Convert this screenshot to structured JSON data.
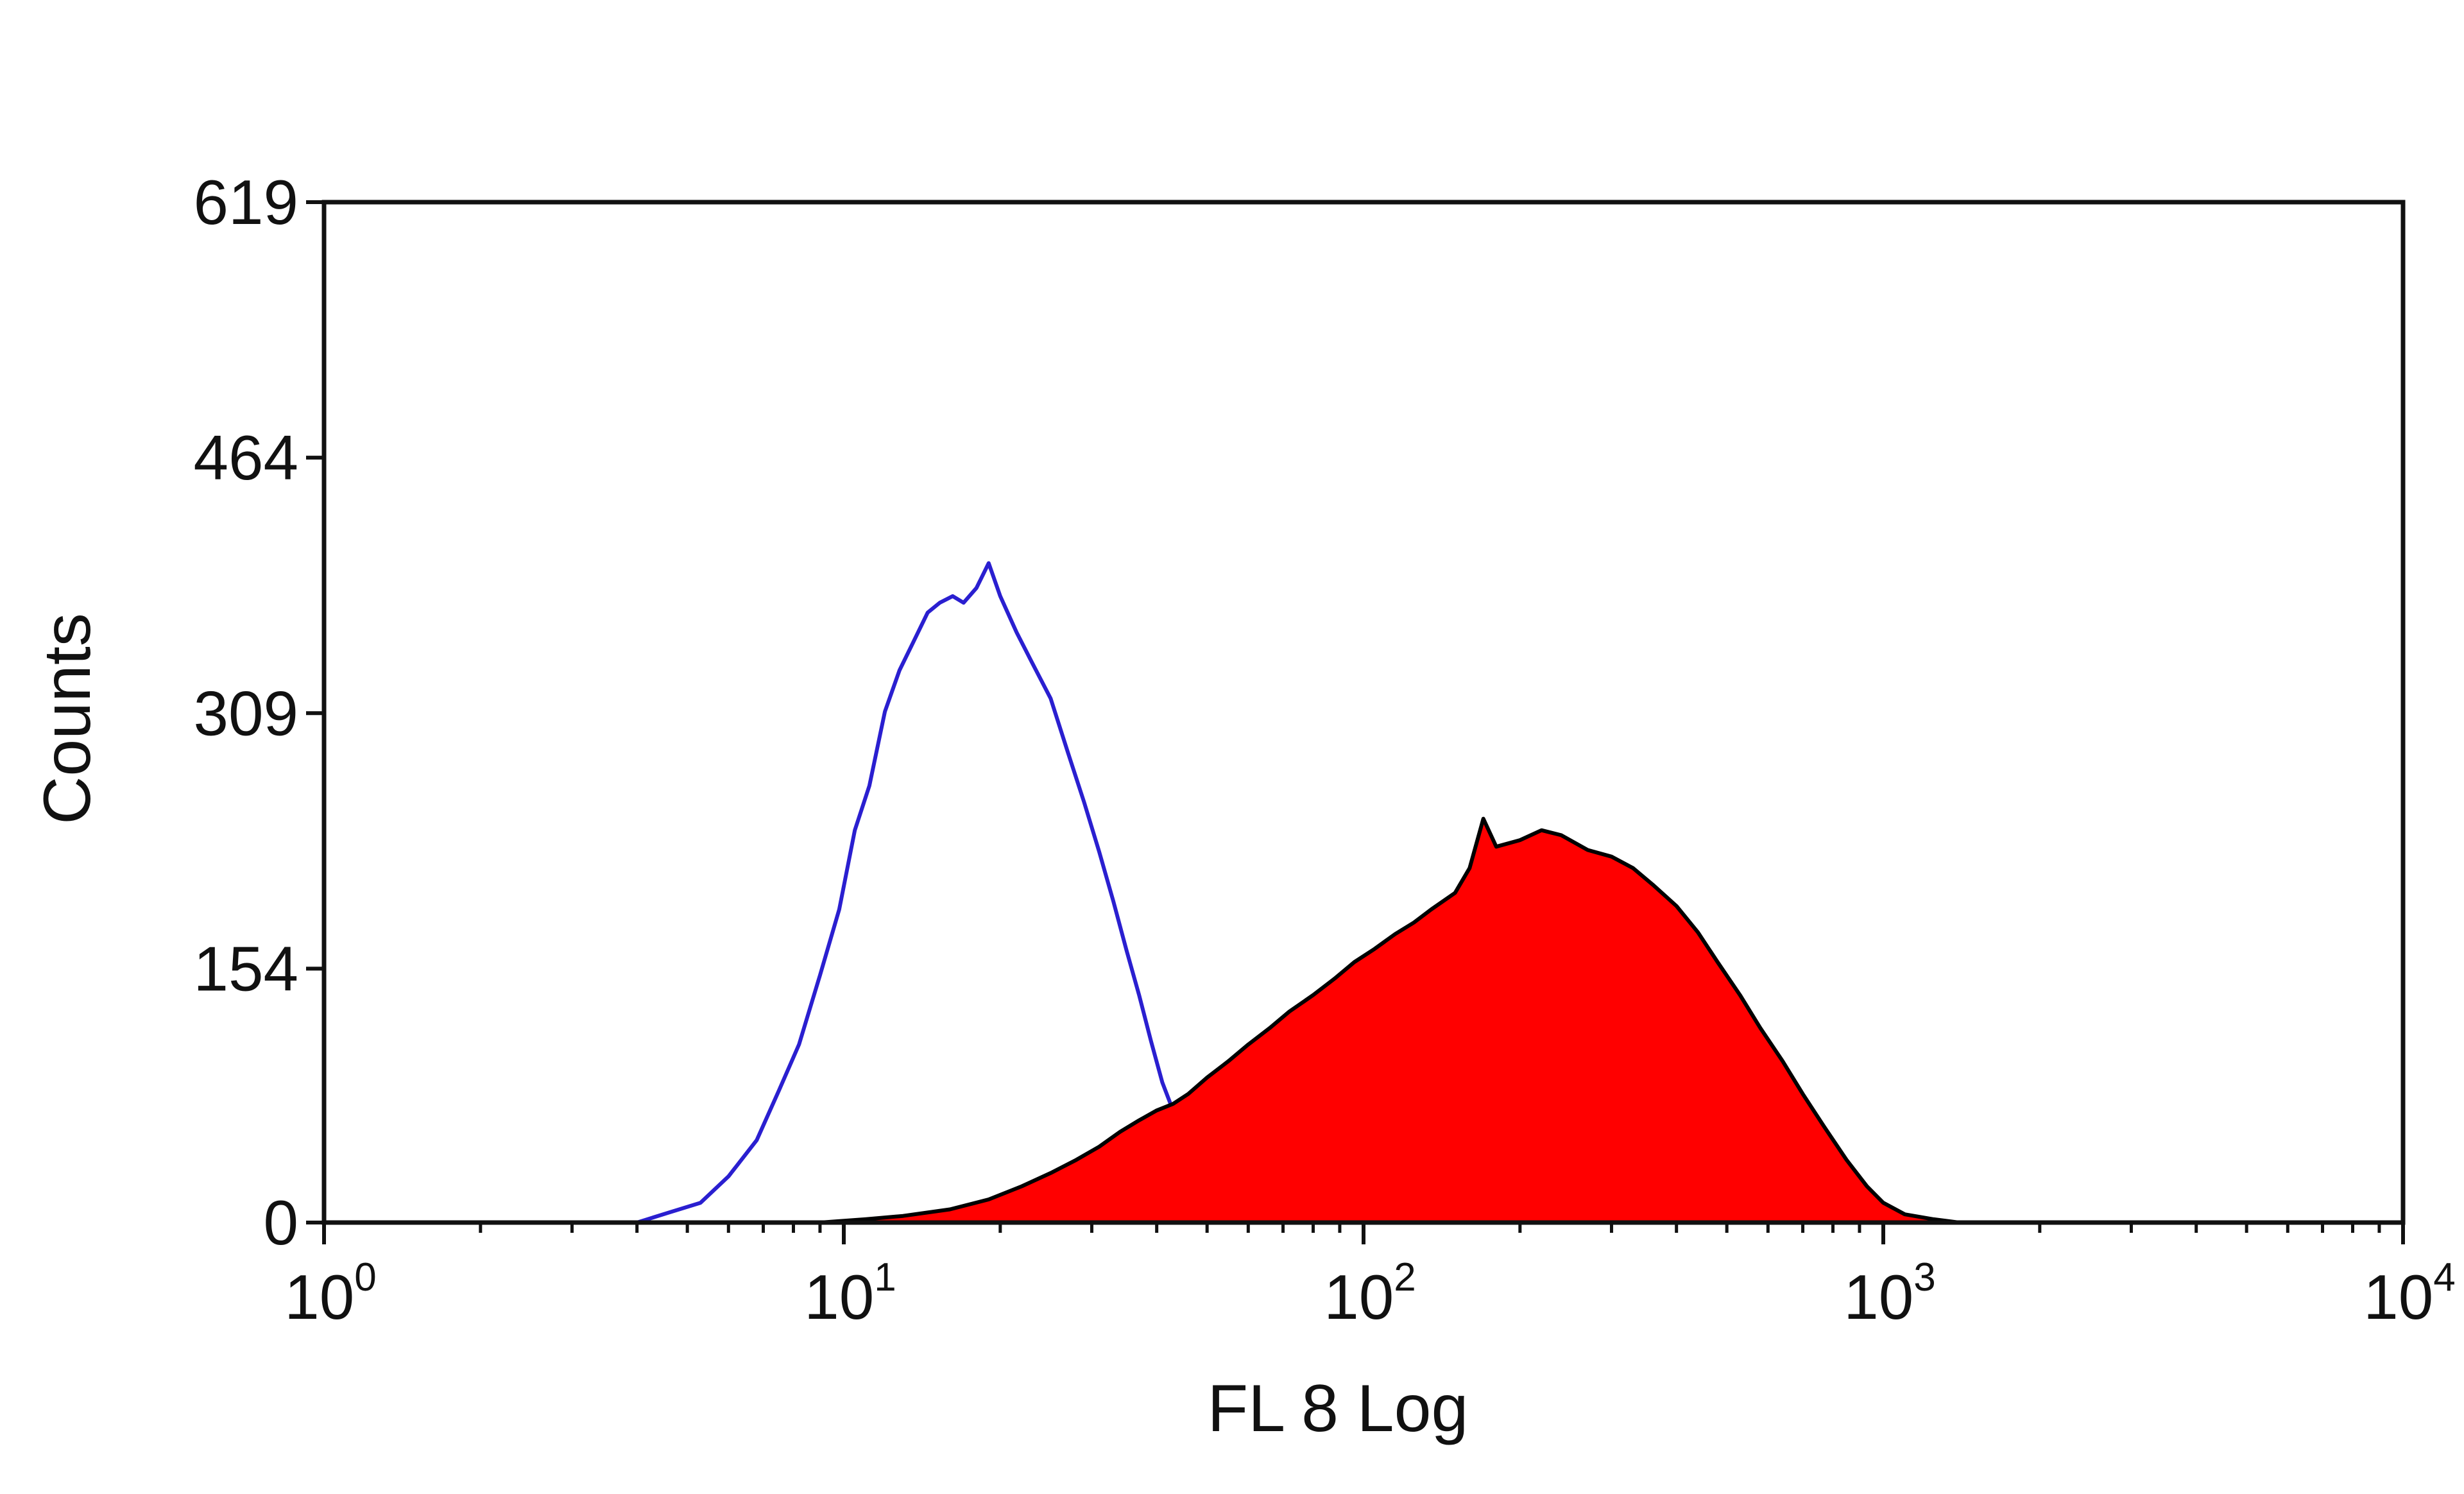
{
  "chart_data": {
    "type": "area",
    "xlabel": "FL 8 Log",
    "ylabel": "Counts",
    "xscale": "log",
    "xlim": [
      1,
      10000
    ],
    "ylim": [
      0,
      619
    ],
    "grid": false,
    "legend": "none",
    "x_ticks": [
      {
        "base": "10",
        "exp": "0",
        "value": 1
      },
      {
        "base": "10",
        "exp": "1",
        "value": 10
      },
      {
        "base": "10",
        "exp": "2",
        "value": 100
      },
      {
        "base": "10",
        "exp": "3",
        "value": 1000
      },
      {
        "base": "10",
        "exp": "4",
        "value": 10000
      }
    ],
    "y_ticks": [
      "0",
      "154",
      "309",
      "464",
      "619"
    ],
    "series": [
      {
        "style": "outline",
        "color": "#2a1fd0",
        "points": [
          [
            4.0,
            0
          ],
          [
            4.6,
            6
          ],
          [
            5.3,
            12
          ],
          [
            6.0,
            28
          ],
          [
            6.8,
            50
          ],
          [
            7.5,
            80
          ],
          [
            8.2,
            108
          ],
          [
            9.0,
            150
          ],
          [
            9.8,
            190
          ],
          [
            10.5,
            238
          ],
          [
            11.2,
            265
          ],
          [
            12.0,
            310
          ],
          [
            12.8,
            335
          ],
          [
            13.6,
            352
          ],
          [
            14.5,
            370
          ],
          [
            15.3,
            376
          ],
          [
            16.2,
            380
          ],
          [
            17.0,
            376
          ],
          [
            18.0,
            385
          ],
          [
            19.0,
            400
          ],
          [
            20.0,
            380
          ],
          [
            21.5,
            358
          ],
          [
            23.0,
            340
          ],
          [
            25.0,
            318
          ],
          [
            27.0,
            285
          ],
          [
            29.0,
            255
          ],
          [
            31.0,
            225
          ],
          [
            33.0,
            195
          ],
          [
            35.0,
            165
          ],
          [
            37.0,
            138
          ],
          [
            39.0,
            110
          ],
          [
            41.0,
            85
          ],
          [
            43.0,
            68
          ],
          [
            46.0,
            55
          ],
          [
            50.0,
            45
          ],
          [
            55.0,
            38
          ],
          [
            60.0,
            32
          ],
          [
            66.0,
            34
          ],
          [
            72.0,
            30
          ],
          [
            80.0,
            28
          ],
          [
            90.0,
            22
          ],
          [
            100.0,
            16
          ],
          [
            115.0,
            12
          ],
          [
            130.0,
            8
          ],
          [
            150.0,
            6
          ],
          [
            170.0,
            4
          ],
          [
            200.0,
            2
          ],
          [
            250.0,
            0
          ]
        ]
      },
      {
        "style": "filled",
        "color": "#ff0000",
        "outline": "#000000",
        "points": [
          [
            9.0,
            0
          ],
          [
            11.0,
            2
          ],
          [
            13.0,
            4
          ],
          [
            16.0,
            8
          ],
          [
            19.0,
            14
          ],
          [
            22.0,
            22
          ],
          [
            25.0,
            30
          ],
          [
            28.0,
            38
          ],
          [
            31.0,
            46
          ],
          [
            34.0,
            55
          ],
          [
            37.0,
            62
          ],
          [
            40.0,
            68
          ],
          [
            43.0,
            72
          ],
          [
            46.0,
            78
          ],
          [
            50.0,
            88
          ],
          [
            55.0,
            98
          ],
          [
            60.0,
            108
          ],
          [
            66.0,
            118
          ],
          [
            72.0,
            128
          ],
          [
            80.0,
            138
          ],
          [
            88.0,
            148
          ],
          [
            96.0,
            158
          ],
          [
            105.0,
            166
          ],
          [
            115.0,
            175
          ],
          [
            125.0,
            182
          ],
          [
            135.0,
            190
          ],
          [
            150.0,
            200
          ],
          [
            160.0,
            215
          ],
          [
            170.0,
            245
          ],
          [
            180.0,
            228
          ],
          [
            200.0,
            232
          ],
          [
            220.0,
            238
          ],
          [
            240.0,
            235
          ],
          [
            270.0,
            226
          ],
          [
            300.0,
            222
          ],
          [
            330.0,
            215
          ],
          [
            360.0,
            205
          ],
          [
            400.0,
            192
          ],
          [
            440.0,
            176
          ],
          [
            480.0,
            158
          ],
          [
            530.0,
            138
          ],
          [
            580.0,
            118
          ],
          [
            640.0,
            98
          ],
          [
            700.0,
            78
          ],
          [
            770.0,
            58
          ],
          [
            850.0,
            38
          ],
          [
            930.0,
            22
          ],
          [
            1000.0,
            12
          ],
          [
            1100.0,
            5
          ],
          [
            1250.0,
            2
          ],
          [
            1400.0,
            0
          ]
        ]
      }
    ]
  }
}
